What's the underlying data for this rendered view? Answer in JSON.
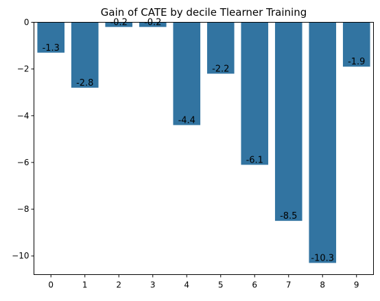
{
  "chart_data": {
    "type": "bar",
    "title": "Gain of CATE by decile Tlearner Training",
    "xlabel": "",
    "ylabel": "",
    "categories": [
      "0",
      "1",
      "2",
      "3",
      "4",
      "5",
      "6",
      "7",
      "8",
      "9"
    ],
    "values": [
      -1.3,
      -2.8,
      -0.2,
      -0.2,
      -4.4,
      -2.2,
      -6.1,
      -8.5,
      -10.3,
      -1.9
    ],
    "data_labels": [
      "-1.3",
      "-2.8",
      "-0.2",
      "-0.2",
      "-4.4",
      "-2.2",
      "-6.1",
      "-8.5",
      "-10.3",
      "-1.9"
    ],
    "ylim": [
      -10.8,
      0
    ],
    "yticks": [
      0,
      -2,
      -4,
      -6,
      -8,
      -10
    ],
    "ytick_labels": [
      "0",
      "−2",
      "−4",
      "−6",
      "−8",
      "−10"
    ],
    "bar_color": "#3274a1",
    "grid": false,
    "legend": "none"
  }
}
